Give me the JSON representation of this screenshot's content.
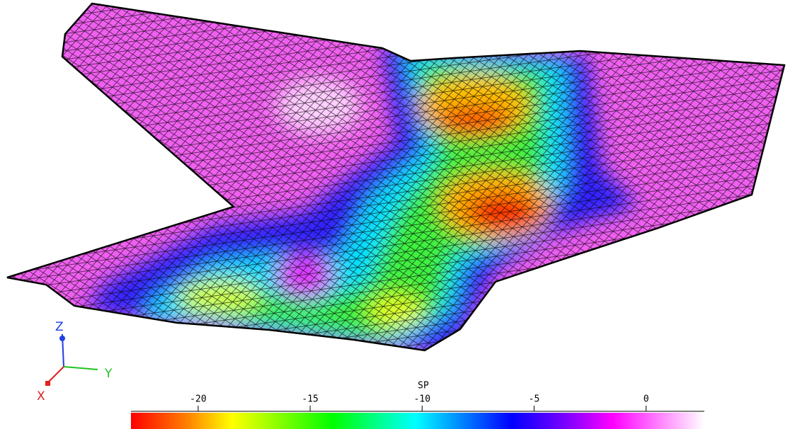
{
  "colorbar": {
    "title": "SP",
    "lim": [
      -23,
      2.6
    ],
    "ticks": [
      -20,
      -15,
      -10,
      -5,
      0
    ],
    "colormap": [
      {
        "value": -23,
        "color": "#ff0000"
      },
      {
        "value": -20.5,
        "color": "#ff8000"
      },
      {
        "value": -18.5,
        "color": "#ffff00"
      },
      {
        "value": -14,
        "color": "#00ff00"
      },
      {
        "value": -10.3,
        "color": "#00ffff"
      },
      {
        "value": -6,
        "color": "#0000ff"
      },
      {
        "value": -3.5,
        "color": "#8000ff"
      },
      {
        "value": -1.5,
        "color": "#ff00ff"
      },
      {
        "value": 2.6,
        "color": "#ffffff"
      }
    ]
  },
  "axes_triad": {
    "labels": [
      "X",
      "Y",
      "Z"
    ]
  }
}
